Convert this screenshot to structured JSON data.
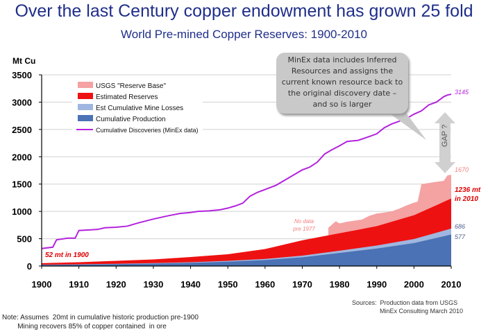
{
  "headline": "Over the last Century copper endowment has grown 25 fold",
  "notes": {
    "sources": "Sources:  Production data from USGS\n                MinEx Consulting March 2010",
    "assumptions": "Note: Assumes  20mt in cumulative historic production pre-1900\n        Mining recovers 85% of copper contained  in ore"
  },
  "colors": {
    "usgs": "#f4a2a2",
    "reserves": "#ee1111",
    "losses": "#9fb7e0",
    "production": "#4a72b4",
    "discoveries": "#b322dd",
    "callout": "#c9c9c9",
    "title": "#1f2e8a"
  },
  "chart_data": {
    "type": "area",
    "title": "World Pre-mined Copper Reserves: 1900-2010",
    "ylabel": "Mt Cu",
    "xlabel": "",
    "xlim": [
      1900,
      2010
    ],
    "ylim": [
      0,
      3500
    ],
    "x_ticks": [
      "1900",
      "1910",
      "1920",
      "1930",
      "1940",
      "1950",
      "1960",
      "1970",
      "1980",
      "1990",
      "2000",
      "2010"
    ],
    "y_ticks": [
      "0",
      "500",
      "1000",
      "1500",
      "2000",
      "2500",
      "3000",
      "3500"
    ],
    "legend": [
      {
        "label": "USGS \"Reserve Base\"",
        "type": "area",
        "color": "#f4a2a2"
      },
      {
        "label": "Estimated Reserves",
        "type": "area",
        "color": "#ee1111"
      },
      {
        "label": "Est Cumulative Mine Losses",
        "type": "area",
        "color": "#9fb7e0"
      },
      {
        "label": "Cumulative Production",
        "type": "area",
        "color": "#4a72b4"
      },
      {
        "label": "Cumulative Discoveries (MinEx data)",
        "type": "line",
        "color": "#b322dd"
      }
    ],
    "stacked_series": {
      "x": [
        1900,
        1910,
        1920,
        1930,
        1940,
        1950,
        1960,
        1970,
        1980,
        1990,
        2000,
        2010
      ],
      "production": [
        20,
        27,
        35,
        45,
        58,
        80,
        110,
        160,
        240,
        320,
        420,
        577
      ],
      "losses": [
        24,
        32,
        42,
        54,
        70,
        95,
        130,
        190,
        280,
        375,
        495,
        686
      ],
      "reserves": [
        52,
        70,
        95,
        120,
        165,
        215,
        310,
        470,
        600,
        730,
        930,
        1236
      ]
    },
    "usgs_reserve_base": {
      "x": [
        1977,
        1978,
        1979,
        1980,
        1982,
        1984,
        1986,
        1988,
        1990,
        1992,
        1994,
        1996,
        1998,
        2000,
        2001,
        2002,
        2004,
        2006,
        2008,
        2009,
        2010
      ],
      "values": [
        700,
        760,
        820,
        780,
        810,
        830,
        850,
        920,
        960,
        980,
        1000,
        1050,
        1110,
        1160,
        1180,
        1500,
        1520,
        1540,
        1560,
        1660,
        1670
      ]
    },
    "cumulative_discoveries": {
      "x": [
        1900,
        1903,
        1904,
        1907,
        1909,
        1910,
        1915,
        1917,
        1920,
        1923,
        1926,
        1930,
        1934,
        1937,
        1940,
        1942,
        1945,
        1948,
        1950,
        1952,
        1954,
        1956,
        1958,
        1960,
        1963,
        1966,
        1968,
        1970,
        1972,
        1974,
        1976,
        1978,
        1980,
        1982,
        1985,
        1988,
        1990,
        1992,
        1994,
        1996,
        1998,
        2000,
        2002,
        2004,
        2006,
        2008,
        2009,
        2010
      ],
      "values": [
        320,
        345,
        480,
        510,
        510,
        650,
        670,
        700,
        710,
        730,
        790,
        860,
        920,
        960,
        980,
        1000,
        1010,
        1030,
        1060,
        1100,
        1150,
        1280,
        1350,
        1400,
        1480,
        1600,
        1680,
        1760,
        1810,
        1900,
        2050,
        2130,
        2200,
        2280,
        2300,
        2370,
        2420,
        2530,
        2600,
        2650,
        2700,
        2780,
        2840,
        2950,
        3000,
        3100,
        3130,
        3145
      ]
    },
    "annotations": [
      {
        "text": "52 mt in 1900",
        "color": "#dd0000"
      },
      {
        "text": "No data\npre 1977",
        "color": "#f08080"
      },
      {
        "text": "1236 mt\nin 2010",
        "color": "#dd0000"
      },
      {
        "text": "3145",
        "color": "#b322dd"
      },
      {
        "text": "1670",
        "color": "#f08080"
      },
      {
        "text": "686",
        "color": "#4a5f8a"
      },
      {
        "text": "577",
        "color": "#4a5f8a"
      }
    ],
    "callout": {
      "text": "MinEx data includes  Inferred Resources and assigns the current known resource back to the original discovery date – and so is larger",
      "gap_label": "GAP ?"
    }
  }
}
